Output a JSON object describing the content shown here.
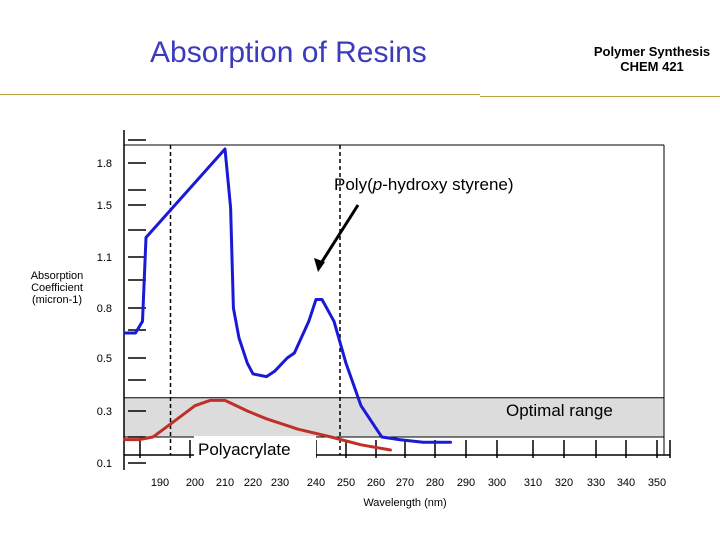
{
  "header": {
    "title": "Absorption of Resins",
    "course_line1": "Polymer Synthesis",
    "course_line2": "CHEM 421"
  },
  "chart_data": {
    "type": "line",
    "xlabel": "Wavelength (nm)",
    "ylabel_lines": [
      "Absorption",
      "Coefficient",
      "(micron-1)"
    ],
    "x_tick_labels": [
      "190",
      "200",
      "210",
      "220",
      "230",
      "240",
      "250",
      "260",
      "270",
      "280",
      "290",
      "300",
      "310",
      "320",
      "330",
      "340",
      "350"
    ],
    "y_tick_labels": [
      "1.8",
      "1.5",
      "1.1",
      "0.8",
      "0.5",
      "0.3",
      "0.1"
    ],
    "annotations": {
      "phs_label_prefix": "Poly(",
      "phs_label_italic": "p",
      "phs_label_suffix": "-hydroxy styrene)",
      "optimal_range_label": "Optimal range",
      "polyacrylate_label": "Polyacrylate"
    },
    "optimal_range": {
      "y": [
        0.2,
        0.35
      ],
      "color": "#dcdcdc"
    },
    "dashed_markers_nm": [
      193,
      248
    ],
    "series": [
      {
        "name": "Poly(p-hydroxy styrene)",
        "color": "#1a1ad6",
        "x": [
          180,
          183,
          185,
          186,
          210,
          212,
          213,
          215,
          218,
          220,
          225,
          228,
          232,
          234,
          238,
          240,
          242,
          246,
          250,
          255,
          262,
          268,
          276,
          285
        ],
        "y": [
          0.65,
          0.65,
          0.72,
          1.25,
          1.9,
          1.48,
          0.8,
          0.62,
          0.48,
          0.44,
          0.43,
          0.45,
          0.5,
          0.53,
          0.72,
          0.85,
          0.85,
          0.72,
          0.48,
          0.32,
          0.2,
          0.19,
          0.18,
          0.18
        ]
      },
      {
        "name": "Polyacrylate",
        "color": "#c0302a",
        "x": [
          180,
          184,
          188,
          190,
          195,
          200,
          205,
          210,
          218,
          225,
          235,
          245,
          255,
          265
        ],
        "y": [
          0.19,
          0.19,
          0.2,
          0.22,
          0.27,
          0.32,
          0.34,
          0.34,
          0.3,
          0.27,
          0.23,
          0.2,
          0.17,
          0.15
        ]
      }
    ]
  }
}
